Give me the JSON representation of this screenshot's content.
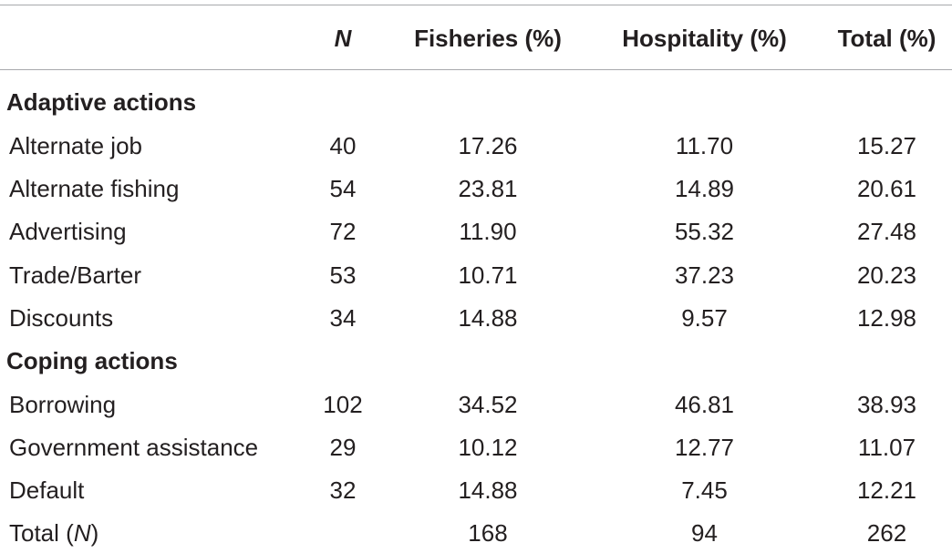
{
  "header": {
    "n": "N",
    "fisheries": "Fisheries (%)",
    "hospitality": "Hospitality (%)",
    "total": "Total (%)"
  },
  "sections": [
    {
      "title": "Adaptive actions",
      "rows": [
        {
          "label": "Alternate job",
          "n": "40",
          "fisheries": "17.26",
          "hospitality": "11.70",
          "total": "15.27"
        },
        {
          "label": "Alternate fishing",
          "n": "54",
          "fisheries": "23.81",
          "hospitality": "14.89",
          "total": "20.61"
        },
        {
          "label": "Advertising",
          "n": "72",
          "fisheries": "11.90",
          "hospitality": "55.32",
          "total": "27.48"
        },
        {
          "label": "Trade/Barter",
          "n": "53",
          "fisheries": "10.71",
          "hospitality": "37.23",
          "total": "20.23"
        },
        {
          "label": "Discounts",
          "n": "34",
          "fisheries": "14.88",
          "hospitality": "9.57",
          "total": "12.98"
        }
      ]
    },
    {
      "title": "Coping actions",
      "rows": [
        {
          "label": "Borrowing",
          "n": "102",
          "fisheries": "34.52",
          "hospitality": "46.81",
          "total": "38.93"
        },
        {
          "label": "Government assistance",
          "n": "29",
          "fisheries": "10.12",
          "hospitality": "12.77",
          "total": "11.07"
        },
        {
          "label": "Default",
          "n": "32",
          "fisheries": "14.88",
          "hospitality": "7.45",
          "total": "12.21"
        }
      ]
    }
  ],
  "total_row": {
    "label_prefix": "Total (",
    "label_n": "N",
    "label_suffix": ")",
    "fisheries": "168",
    "hospitality": "94",
    "total": "262"
  }
}
